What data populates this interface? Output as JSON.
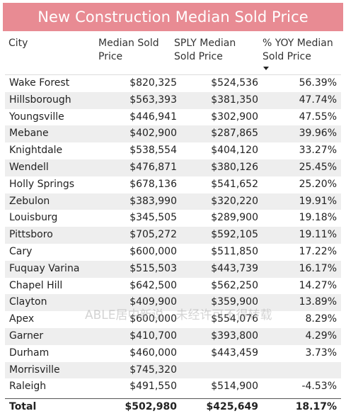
{
  "title": "New Construction Median Sold Price",
  "headers": {
    "city": "City",
    "median_l1": "Median Sold",
    "median_l2": "Price",
    "sply_l1": "SPLY Median",
    "sply_l2": "Sold Price",
    "yoy_l1": "% YOY Median",
    "yoy_l2": "Sold Price",
    "sort_icon": "sort-descending-icon"
  },
  "rows": [
    {
      "city": "Wake Forest",
      "median": "$820,325",
      "sply": "$524,536",
      "yoy": "56.39%"
    },
    {
      "city": "Hillsborough",
      "median": "$563,393",
      "sply": "$381,350",
      "yoy": "47.74%"
    },
    {
      "city": "Youngsville",
      "median": "$446,941",
      "sply": "$302,900",
      "yoy": "47.55%"
    },
    {
      "city": "Mebane",
      "median": "$402,900",
      "sply": "$287,865",
      "yoy": "39.96%"
    },
    {
      "city": "Knightdale",
      "median": "$538,554",
      "sply": "$404,120",
      "yoy": "33.27%"
    },
    {
      "city": "Wendell",
      "median": "$476,871",
      "sply": "$380,126",
      "yoy": "25.45%"
    },
    {
      "city": "Holly Springs",
      "median": "$678,136",
      "sply": "$541,652",
      "yoy": "25.20%"
    },
    {
      "city": "Zebulon",
      "median": "$383,990",
      "sply": "$320,220",
      "yoy": "19.91%"
    },
    {
      "city": "Louisburg",
      "median": "$345,505",
      "sply": "$289,900",
      "yoy": "19.18%"
    },
    {
      "city": "Pittsboro",
      "median": "$705,272",
      "sply": "$592,105",
      "yoy": "19.11%"
    },
    {
      "city": "Cary",
      "median": "$600,000",
      "sply": "$511,850",
      "yoy": "17.22%"
    },
    {
      "city": "Fuquay Varina",
      "median": "$515,503",
      "sply": "$443,739",
      "yoy": "16.17%"
    },
    {
      "city": "Chapel Hill",
      "median": "$642,500",
      "sply": "$562,250",
      "yoy": "14.27%"
    },
    {
      "city": "Clayton",
      "median": "$409,900",
      "sply": "$359,900",
      "yoy": "13.89%"
    },
    {
      "city": "Apex",
      "median": "$600,000",
      "sply": "$554,076",
      "yoy": "8.29%"
    },
    {
      "city": "Garner",
      "median": "$410,700",
      "sply": "$393,800",
      "yoy": "4.29%"
    },
    {
      "city": "Durham",
      "median": "$460,000",
      "sply": "$443,459",
      "yoy": "3.73%"
    },
    {
      "city": "Morrisville",
      "median": "$745,320",
      "sply": "",
      "yoy": ""
    },
    {
      "city": "Raleigh",
      "median": "$491,550",
      "sply": "$514,900",
      "yoy": "-4.53%"
    }
  ],
  "total": {
    "city": "Total",
    "median": "$502,980",
    "sply": "$425,649",
    "yoy": "18.17%"
  },
  "watermark": "ABLE居中新说，未经许可不得转载"
}
